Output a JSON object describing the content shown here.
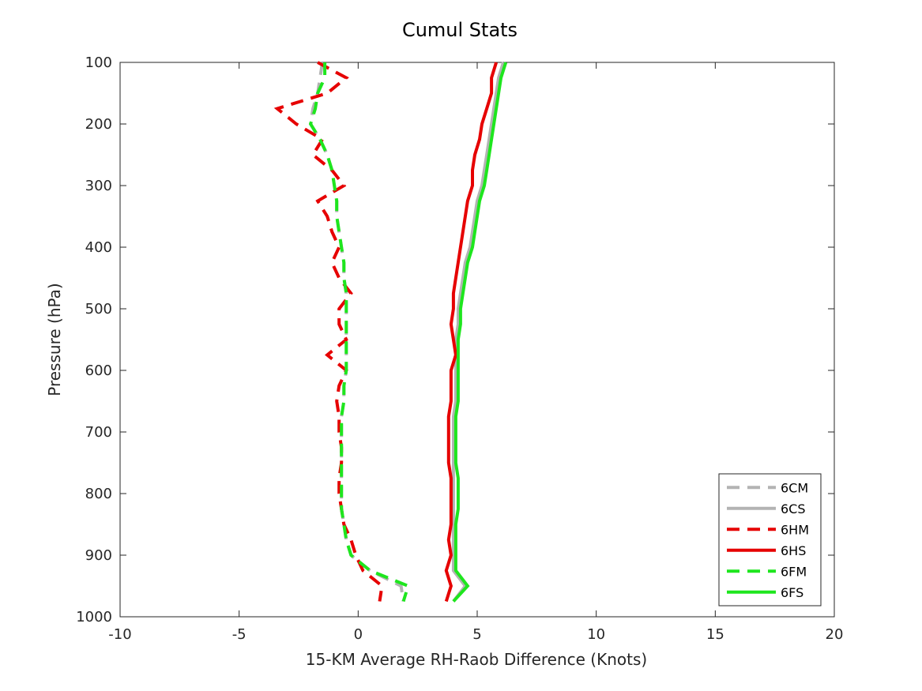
{
  "chart_data": {
    "type": "line",
    "title": "Cumul Stats",
    "xlabel": "15-KM Average RH-Raob Difference (Knots)",
    "ylabel": "Pressure (hPa)",
    "xlim": [
      -10,
      20
    ],
    "ylim": [
      100,
      1000
    ],
    "y_reversed": true,
    "x_ticks": [
      -10,
      -5,
      0,
      5,
      10,
      15,
      20
    ],
    "y_ticks": [
      100,
      200,
      300,
      400,
      500,
      600,
      700,
      800,
      900,
      1000
    ],
    "grid": false,
    "legend_position": "bottom-right",
    "pressure_levels": [
      100,
      125,
      150,
      175,
      200,
      225,
      250,
      275,
      300,
      325,
      350,
      375,
      400,
      425,
      450,
      475,
      500,
      525,
      550,
      575,
      600,
      625,
      650,
      675,
      700,
      725,
      750,
      775,
      800,
      825,
      850,
      875,
      900,
      925,
      950,
      975
    ],
    "series": [
      {
        "name": "6CM",
        "style": "dashed",
        "color": "#b3b3b3",
        "values": [
          -1.5,
          -1.6,
          -1.7,
          -1.9,
          -2.0,
          -1.6,
          -1.3,
          -1.1,
          -1.0,
          -0.9,
          -0.9,
          -0.8,
          -0.7,
          -0.6,
          -0.6,
          -0.5,
          -0.5,
          -0.5,
          -0.5,
          -0.5,
          -0.5,
          -0.6,
          -0.6,
          -0.7,
          -0.7,
          -0.7,
          -0.7,
          -0.7,
          -0.7,
          -0.7,
          -0.6,
          -0.5,
          -0.3,
          0.5,
          1.8,
          1.9
        ]
      },
      {
        "name": "6CS",
        "style": "solid",
        "color": "#b3b3b3",
        "values": [
          6.1,
          5.9,
          5.8,
          5.7,
          5.6,
          5.5,
          5.4,
          5.3,
          5.2,
          5.0,
          4.9,
          4.8,
          4.7,
          4.5,
          4.4,
          4.3,
          4.2,
          4.2,
          4.1,
          4.1,
          4.1,
          4.1,
          4.1,
          4.0,
          4.0,
          4.0,
          4.0,
          4.0,
          4.0,
          4.0,
          4.0,
          4.0,
          4.0,
          4.0,
          4.5,
          4.0
        ]
      },
      {
        "name": "6HM",
        "style": "dashed",
        "color": "#e60000",
        "values": [
          -1.7,
          -0.5,
          -1.3,
          -3.4,
          -2.6,
          -1.5,
          -1.9,
          -1.1,
          -0.6,
          -1.7,
          -1.3,
          -1.1,
          -0.8,
          -1.1,
          -0.8,
          -0.3,
          -0.8,
          -0.8,
          -0.5,
          -1.3,
          -0.5,
          -0.8,
          -0.9,
          -0.8,
          -0.8,
          -0.7,
          -0.7,
          -0.8,
          -0.8,
          -0.7,
          -0.6,
          -0.3,
          -0.1,
          0.2,
          1.0,
          0.9
        ]
      },
      {
        "name": "6HS",
        "style": "solid",
        "color": "#e60000",
        "values": [
          5.8,
          5.6,
          5.6,
          5.4,
          5.2,
          5.1,
          4.9,
          4.8,
          4.8,
          4.6,
          4.5,
          4.4,
          4.3,
          4.2,
          4.1,
          4.0,
          4.0,
          3.9,
          4.0,
          4.1,
          3.9,
          3.9,
          3.9,
          3.8,
          3.8,
          3.8,
          3.8,
          3.9,
          3.9,
          3.9,
          3.9,
          3.8,
          3.9,
          3.7,
          3.9,
          3.7
        ]
      },
      {
        "name": "6FM",
        "style": "dashed",
        "color": "#1ee61e",
        "values": [
          -1.4,
          -1.4,
          -1.7,
          -1.8,
          -2.0,
          -1.6,
          -1.3,
          -1.1,
          -1.0,
          -0.9,
          -0.9,
          -0.8,
          -0.7,
          -0.6,
          -0.6,
          -0.5,
          -0.5,
          -0.5,
          -0.5,
          -0.5,
          -0.5,
          -0.6,
          -0.6,
          -0.7,
          -0.7,
          -0.7,
          -0.7,
          -0.7,
          -0.7,
          -0.7,
          -0.6,
          -0.5,
          -0.3,
          0.5,
          2.1,
          1.9
        ]
      },
      {
        "name": "6FS",
        "style": "solid",
        "color": "#1ee61e",
        "values": [
          6.2,
          6.0,
          5.9,
          5.8,
          5.7,
          5.6,
          5.5,
          5.4,
          5.3,
          5.1,
          5.0,
          4.9,
          4.8,
          4.6,
          4.5,
          4.4,
          4.3,
          4.3,
          4.2,
          4.2,
          4.2,
          4.2,
          4.2,
          4.1,
          4.1,
          4.1,
          4.1,
          4.2,
          4.2,
          4.2,
          4.1,
          4.1,
          4.1,
          4.1,
          4.6,
          4.0
        ]
      }
    ]
  }
}
